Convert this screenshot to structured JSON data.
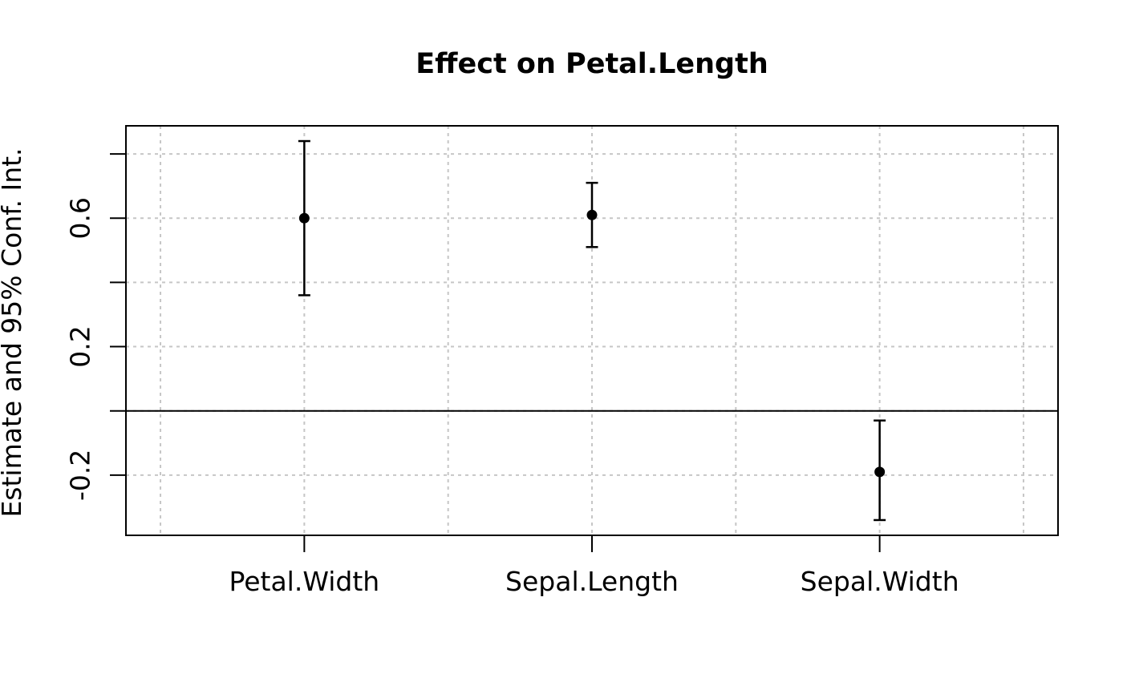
{
  "title": "Effect on Petal.Length",
  "colors": {
    "foreground": "#000000",
    "background": "#ffffff",
    "gridline": "#c6c6c6",
    "point": "#000000",
    "error_bar": "#000000",
    "zero_line": "#000000"
  },
  "chart_data": {
    "type": "scatter",
    "title": "Effect on Petal.Length",
    "xlabel": "",
    "ylabel": "Estimate and 95% Conf. Int.",
    "categories": [
      "Petal.Width",
      "Sepal.Length",
      "Sepal.Width"
    ],
    "series": [
      {
        "name": "Estimate and 95% Conf. Int.",
        "points": [
          {
            "category": "Petal.Width",
            "x": 1,
            "estimate": 0.6,
            "ci_low": 0.36,
            "ci_high": 0.84
          },
          {
            "category": "Sepal.Length",
            "x": 2,
            "estimate": 0.61,
            "ci_low": 0.51,
            "ci_high": 0.71
          },
          {
            "category": "Sepal.Width",
            "x": 3,
            "estimate": -0.19,
            "ci_low": -0.34,
            "ci_high": -0.03
          }
        ]
      }
    ],
    "y_ticks": [
      {
        "value": 0.8,
        "label": ""
      },
      {
        "value": 0.6,
        "label": "0.6"
      },
      {
        "value": 0.4,
        "label": ""
      },
      {
        "value": 0.2,
        "label": "0.2"
      },
      {
        "value": 0.0,
        "label": ""
      },
      {
        "value": -0.2,
        "label": "-0.2"
      }
    ],
    "x_gridline_values": [
      0.5,
      1.0,
      1.5,
      2.0,
      2.5,
      3.0,
      3.5
    ],
    "reference_line_y": 0,
    "xlim": [
      0.38,
      3.62
    ],
    "ylim": [
      -0.3875,
      0.8875
    ],
    "grid": true,
    "grid_style": "dotted",
    "legend": false
  }
}
